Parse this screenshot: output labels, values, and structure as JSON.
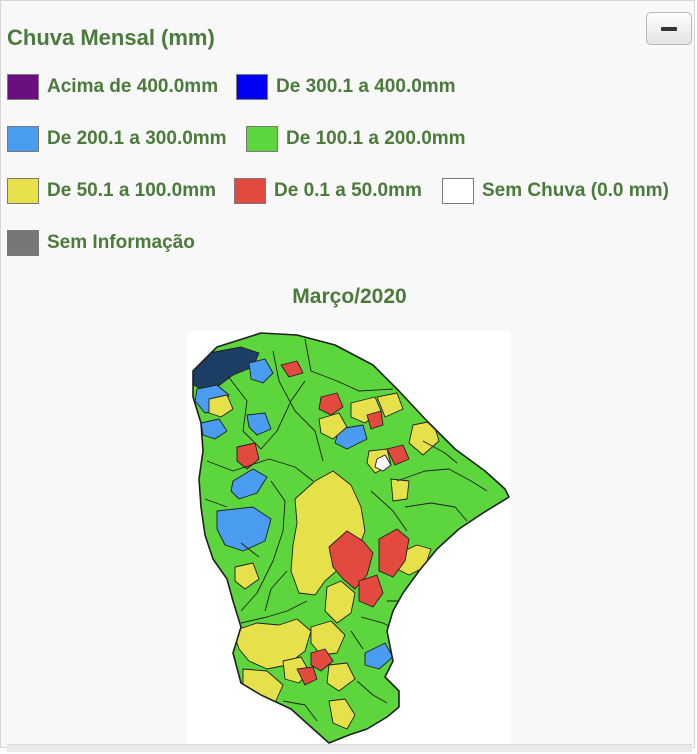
{
  "panel": {
    "title": "Chuva Mensal (mm)",
    "collapse_label": "−"
  },
  "legend": [
    {
      "key": "acima400",
      "label": "Acima de 400.0mm",
      "color": "#6b0f80"
    },
    {
      "key": "300a400",
      "label": "De 300.1 a 400.0mm",
      "color": "#0000f5"
    },
    {
      "key": "200a300",
      "label": "De 200.1 a 300.0mm",
      "color": "#4a9cf0"
    },
    {
      "key": "100a200",
      "label": "De 100.1 a 200.0mm",
      "color": "#5dd63e"
    },
    {
      "key": "50a100",
      "label": "De 50.1 a 100.0mm",
      "color": "#e6e04a"
    },
    {
      "key": "0a50",
      "label": "De 0.1 a 50.0mm",
      "color": "#e34a3f"
    },
    {
      "key": "semchuva",
      "label": "Sem Chuva (0.0 mm)",
      "color": "#ffffff"
    },
    {
      "key": "seminfo",
      "label": "Sem Informação",
      "color": "#777777"
    }
  ],
  "map": {
    "title": "Março/2020",
    "colors": {
      "outline": "#1f1f1f",
      "dark_region": "#1c3f66"
    }
  }
}
